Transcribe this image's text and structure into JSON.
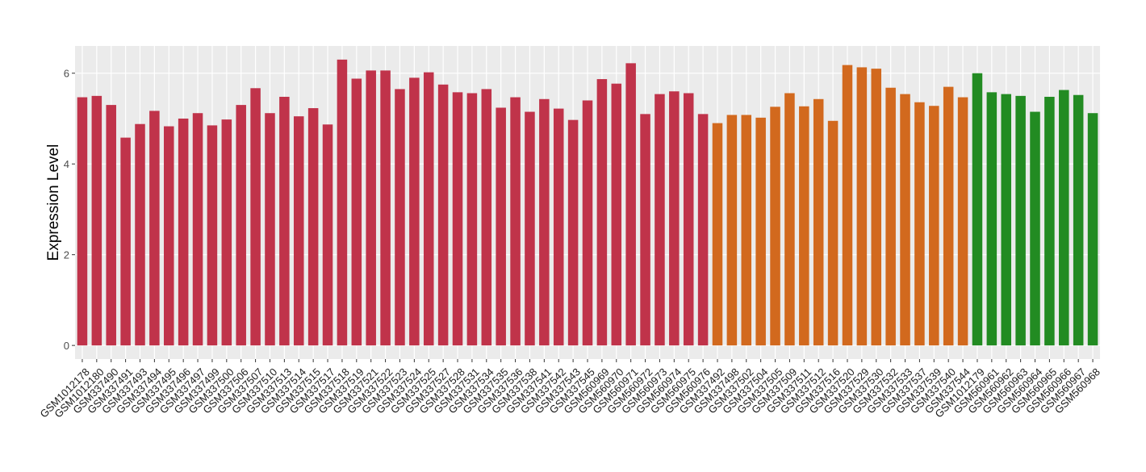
{
  "chart_data": {
    "type": "bar",
    "y_label": "Expression Level",
    "categories": [
      "GSM1012178",
      "GSM1012180",
      "GSM337490",
      "GSM337491",
      "GSM337493",
      "GSM337494",
      "GSM337495",
      "GSM337496",
      "GSM337497",
      "GSM337499",
      "GSM337500",
      "GSM337506",
      "GSM337507",
      "GSM337510",
      "GSM337513",
      "GSM337514",
      "GSM337515",
      "GSM337517",
      "GSM337518",
      "GSM337519",
      "GSM337521",
      "GSM337522",
      "GSM337523",
      "GSM337524",
      "GSM337525",
      "GSM337527",
      "GSM337528",
      "GSM337531",
      "GSM337534",
      "GSM337535",
      "GSM337536",
      "GSM337538",
      "GSM337541",
      "GSM337542",
      "GSM337543",
      "GSM337545",
      "GSM560969",
      "GSM560970",
      "GSM560971",
      "GSM560972",
      "GSM560973",
      "GSM560974",
      "GSM560975",
      "GSM560976",
      "GSM337492",
      "GSM337498",
      "GSM337502",
      "GSM337504",
      "GSM337505",
      "GSM337509",
      "GSM337511",
      "GSM337512",
      "GSM337516",
      "GSM337520",
      "GSM337529",
      "GSM337530",
      "GSM337532",
      "GSM337533",
      "GSM337537",
      "GSM337539",
      "GSM337540",
      "GSM337544",
      "GSM1012179",
      "GSM560961",
      "GSM560962",
      "GSM560963",
      "GSM560964",
      "GSM560965",
      "GSM560966",
      "GSM560967",
      "GSM560968"
    ],
    "values": [
      5.47,
      5.5,
      5.3,
      4.58,
      4.88,
      5.17,
      4.83,
      5.0,
      5.12,
      4.85,
      4.98,
      5.3,
      5.67,
      5.12,
      5.48,
      5.05,
      5.23,
      4.87,
      6.3,
      5.88,
      6.06,
      6.06,
      5.65,
      5.9,
      6.02,
      5.75,
      5.58,
      5.56,
      5.65,
      5.24,
      5.47,
      5.15,
      5.43,
      5.22,
      4.97,
      5.4,
      5.87,
      5.77,
      6.22,
      5.1,
      5.54,
      5.6,
      5.56,
      5.1,
      4.9,
      5.08,
      5.08,
      5.02,
      5.26,
      5.56,
      5.27,
      5.43,
      4.95,
      6.18,
      6.13,
      6.1,
      5.68,
      5.54,
      5.36,
      5.28,
      5.7,
      5.47,
      6.0,
      5.58,
      5.54,
      5.5,
      5.15,
      5.48,
      5.63,
      5.52,
      5.12
    ],
    "colors": [
      "#c0334a",
      "#c0334a",
      "#c0334a",
      "#c0334a",
      "#c0334a",
      "#c0334a",
      "#c0334a",
      "#c0334a",
      "#c0334a",
      "#c0334a",
      "#c0334a",
      "#c0334a",
      "#c0334a",
      "#c0334a",
      "#c0334a",
      "#c0334a",
      "#c0334a",
      "#c0334a",
      "#c0334a",
      "#c0334a",
      "#c0334a",
      "#c0334a",
      "#c0334a",
      "#c0334a",
      "#c0334a",
      "#c0334a",
      "#c0334a",
      "#c0334a",
      "#c0334a",
      "#c0334a",
      "#c0334a",
      "#c0334a",
      "#c0334a",
      "#c0334a",
      "#c0334a",
      "#c0334a",
      "#c0334a",
      "#c0334a",
      "#c0334a",
      "#c0334a",
      "#c0334a",
      "#c0334a",
      "#c0334a",
      "#c0334a",
      "#d2691e",
      "#d2691e",
      "#d2691e",
      "#d2691e",
      "#d2691e",
      "#d2691e",
      "#d2691e",
      "#d2691e",
      "#d2691e",
      "#d2691e",
      "#d2691e",
      "#d2691e",
      "#d2691e",
      "#d2691e",
      "#d2691e",
      "#d2691e",
      "#d2691e",
      "#d2691e",
      "#228b22",
      "#228b22",
      "#228b22",
      "#228b22",
      "#228b22",
      "#228b22",
      "#228b22",
      "#228b22",
      "#228b22"
    ],
    "ylim": [
      -0.3,
      6.6
    ],
    "yticks": [
      0,
      2,
      4,
      6
    ],
    "grid": true
  }
}
